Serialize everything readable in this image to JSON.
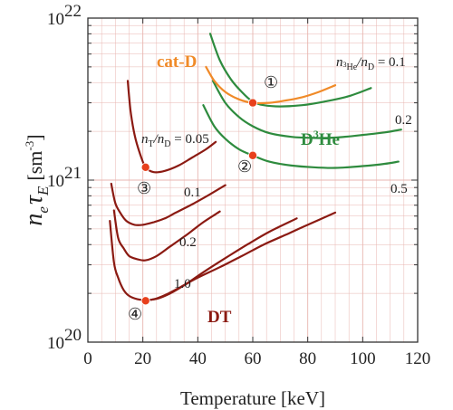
{
  "chart_data": {
    "type": "line",
    "xlabel": "Temperature [keV]",
    "ylabel_main": "n",
    "ylabel_sub_e": "e",
    "ylabel_tau": "τ",
    "ylabel_sub_E": "E",
    "ylabel_unit": "[sm",
    "ylabel_unit_exp": "-3",
    "ylabel_unit_close": "]",
    "xlim": [
      0,
      120
    ],
    "ylim": [
      1e+20,
      1e+22
    ],
    "yscale": "log",
    "grid": true,
    "x_ticks": [
      "0",
      "20",
      "40",
      "60",
      "80",
      "100",
      "120"
    ],
    "y_ticks": [
      {
        "base": "10",
        "exp": "20",
        "value": 1e+20
      },
      {
        "base": "10",
        "exp": "21",
        "value": 1e+21
      },
      {
        "base": "10",
        "exp": "22",
        "value": 1e+22
      }
    ],
    "colors": {
      "dt": "#8b1a12",
      "dhe3": "#2e8b3e",
      "catd": "#f08a28",
      "marker": "#e8401c",
      "grid": "#e8b6b0"
    },
    "series": [
      {
        "group": "dt",
        "x": [
          8.5,
          10,
          12,
          14,
          17,
          20,
          24,
          28,
          32,
          38,
          44,
          50
        ],
        "y": [
          9.5e+20,
          7.2e+20,
          6.2e+20,
          5.6e+20,
          5.3e+20,
          5.3e+20,
          5.5e+20,
          5.8e+20,
          6.3e+20,
          7.1e+20,
          8.1e+20,
          9.3e+20
        ]
      },
      {
        "group": "dt",
        "x": [
          9.5,
          11,
          13,
          15,
          18,
          21,
          25,
          30,
          36,
          42,
          48
        ],
        "y": [
          6.5e+20,
          4.4e+20,
          3.8e+20,
          3.4e+20,
          3.25e+20,
          3.2e+20,
          3.4e+20,
          3.9e+20,
          4.6e+20,
          5.5e+20,
          6.4e+20
        ]
      },
      {
        "group": "dt",
        "x": [
          8.0,
          9.5,
          11,
          13,
          15,
          18,
          21,
          25,
          30,
          36,
          42,
          50,
          58,
          66,
          76
        ],
        "y": [
          5.6e+20,
          3.1e+20,
          2.5e+20,
          2.1e+20,
          1.93e+20,
          1.84e+20,
          1.82e+20,
          1.85e+20,
          2e+20,
          2.3e+20,
          2.7e+20,
          3.3e+20,
          4e+20,
          4.8e+20,
          5.8e+20
        ]
      },
      {
        "group": "dt",
        "x": [
          20,
          24,
          28,
          34,
          40,
          48,
          56,
          64,
          72,
          80,
          90
        ],
        "y": [
          1.8e+20,
          1.84e+20,
          1.95e+20,
          2.2e+20,
          2.5e+20,
          2.9e+20,
          3.4e+20,
          4e+20,
          4.6e+20,
          5.3e+20,
          6.3e+20
        ]
      },
      {
        "group": "dt",
        "x": [
          14.5,
          15.5,
          17,
          19,
          21,
          24,
          28,
          33,
          38,
          43,
          46.5
        ],
        "y": [
          4.1e+21,
          2.7e+21,
          1.9e+21,
          1.45e+21,
          1.2e+21,
          1.12e+21,
          1.14e+21,
          1.23e+21,
          1.38e+21,
          1.55e+21,
          1.72e+21
        ]
      },
      {
        "group": "dhe3",
        "x": [
          44.5,
          48,
          52,
          56,
          60,
          64,
          70,
          78,
          86,
          95,
          103
        ],
        "y": [
          8e+21,
          5.5e+21,
          4.2e+21,
          3.5e+21,
          3.05e+21,
          2.9e+21,
          2.85e+21,
          2.9e+21,
          3.05e+21,
          3.3e+21,
          3.7e+21
        ]
      },
      {
        "group": "dhe3",
        "x": [
          45.5,
          50,
          55,
          60,
          66,
          74,
          82,
          90,
          100,
          108,
          114
        ],
        "y": [
          4.1e+21,
          3e+21,
          2.45e+21,
          2.15e+21,
          1.95e+21,
          1.85e+21,
          1.82e+21,
          1.83e+21,
          1.9e+21,
          1.97e+21,
          2.05e+21
        ]
      },
      {
        "group": "dhe3",
        "x": [
          42,
          46,
          50,
          55,
          60,
          66,
          74,
          82,
          90,
          100,
          108,
          113
        ],
        "y": [
          2.9e+21,
          2.15e+21,
          1.8e+21,
          1.55e+21,
          1.42e+21,
          1.3e+21,
          1.23e+21,
          1.2e+21,
          1.19e+21,
          1.22e+21,
          1.26e+21,
          1.3e+21
        ]
      },
      {
        "group": "catd",
        "x": [
          43,
          46,
          50,
          55,
          60,
          66,
          72,
          78,
          84,
          90
        ],
        "y": [
          5e+21,
          4.1e+21,
          3.5e+21,
          3.15e+21,
          3e+21,
          3e+21,
          3.1e+21,
          3.25e+21,
          3.5e+21,
          3.85e+21
        ]
      }
    ],
    "markers": [
      {
        "x": 21,
        "y": 1.2e+21
      },
      {
        "x": 21,
        "y": 1.8e+20
      },
      {
        "x": 60,
        "y": 3e+21
      },
      {
        "x": 60,
        "y": 1.42e+21
      }
    ],
    "annotations": {
      "nt_pre": "n",
      "nt_sub": "T",
      "nt_mid": "/n",
      "nt_sub2": "D",
      "nt_val": " = 0.05",
      "nhe_pre": "n",
      "nhe_sub": "3",
      "nhe_sub2": "He",
      "nhe_mid": "/n",
      "nhe_sub3": "D",
      "nhe_val": " = 0.1",
      "dt_01": "0.1",
      "dt_02": "0.2",
      "dt_10": "1.0",
      "dhe_02": "0.2",
      "dhe_05": "0.5",
      "cat_d": "cat-D",
      "dhe_label_pre": "D",
      "dhe_label_sup": "3",
      "dhe_label_post": "He",
      "dt_label": "DT",
      "c1": "①",
      "c2": "②",
      "c3": "③",
      "c4": "④"
    }
  }
}
